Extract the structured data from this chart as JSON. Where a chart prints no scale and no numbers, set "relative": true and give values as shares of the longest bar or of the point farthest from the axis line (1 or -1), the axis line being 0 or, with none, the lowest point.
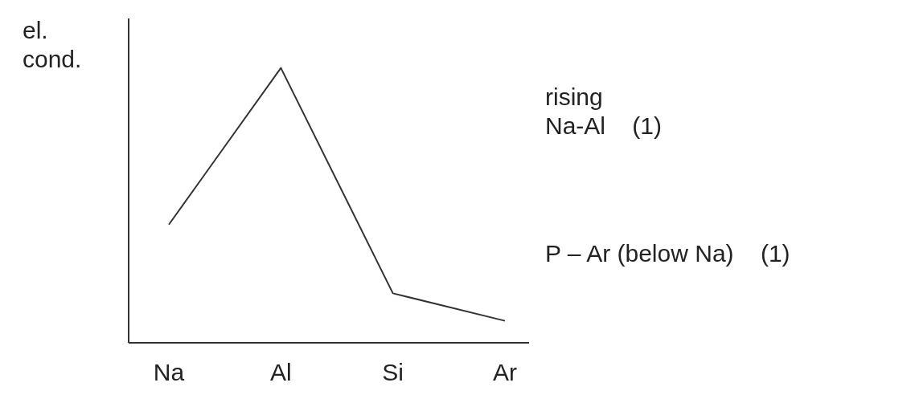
{
  "chart_data": {
    "type": "line",
    "ylabel": "el.\ncond.",
    "categories": [
      "Na",
      "Al",
      "Si",
      "Ar"
    ],
    "relative": true,
    "series": [
      {
        "color": "#333333",
        "values": [
          0.43,
          1,
          0.18,
          0.08
        ]
      }
    ],
    "marker": "none",
    "grid": false,
    "annotations": [
      "rising\nNa-Al    (1)",
      "P – Ar (below Na)    (1)"
    ]
  }
}
